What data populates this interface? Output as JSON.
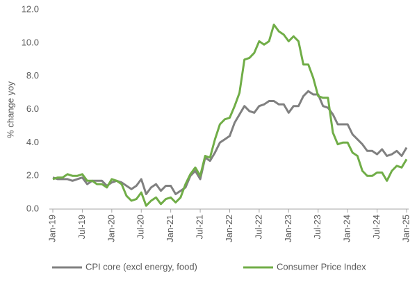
{
  "chart_data": {
    "type": "line",
    "y_label": "% change yoy",
    "categories": [
      "Jan-19",
      null,
      null,
      null,
      null,
      null,
      "Jul-19",
      null,
      null,
      null,
      null,
      null,
      "Jan-20",
      null,
      null,
      null,
      null,
      null,
      "Jul-20",
      null,
      null,
      null,
      null,
      null,
      "Jan-21",
      null,
      null,
      null,
      null,
      null,
      "Jul-21",
      null,
      null,
      null,
      null,
      null,
      "Jan-22",
      null,
      null,
      null,
      null,
      null,
      "Jul-22",
      null,
      null,
      null,
      null,
      null,
      "Jan-23",
      null,
      null,
      null,
      null,
      null,
      "Jul-23",
      null,
      null,
      null,
      null,
      null,
      "Jan-24",
      null,
      null,
      null,
      null,
      null,
      "Jul-24",
      null,
      null,
      null,
      null,
      null,
      "Jan-25"
    ],
    "series": [
      {
        "name": "CPI core (excl energy, food)",
        "color": "#808080",
        "values": [
          1.9,
          1.8,
          1.8,
          1.8,
          1.7,
          1.8,
          1.9,
          1.5,
          1.7,
          1.7,
          1.7,
          1.4,
          1.6,
          1.7,
          1.6,
          1.4,
          1.2,
          1.4,
          1.8,
          0.9,
          1.3,
          1.5,
          1.1,
          1.4,
          1.4,
          0.9,
          1.1,
          1.3,
          2.0,
          2.3,
          1.8,
          3.1,
          2.9,
          3.4,
          4.0,
          4.2,
          4.4,
          5.2,
          5.7,
          6.2,
          5.9,
          5.8,
          6.2,
          6.3,
          6.5,
          6.5,
          6.3,
          6.3,
          5.8,
          6.2,
          6.2,
          6.8,
          7.1,
          6.9,
          6.9,
          6.2,
          6.1,
          5.7,
          5.1,
          5.1,
          5.1,
          4.5,
          4.2,
          3.9,
          3.5,
          3.5,
          3.3,
          3.6,
          3.2,
          3.3,
          3.5,
          3.2,
          3.7
        ]
      },
      {
        "name": "Consumer Price Index",
        "color": "#70ad47",
        "values": [
          1.8,
          1.9,
          1.9,
          2.1,
          2.0,
          2.0,
          2.1,
          1.7,
          1.7,
          1.5,
          1.5,
          1.3,
          1.8,
          1.7,
          1.5,
          0.8,
          0.5,
          0.6,
          1.0,
          0.2,
          0.5,
          0.7,
          0.3,
          0.6,
          0.7,
          0.4,
          0.7,
          1.5,
          2.1,
          2.5,
          2.0,
          3.2,
          3.1,
          4.2,
          5.1,
          5.4,
          5.5,
          6.2,
          7.0,
          9.0,
          9.1,
          9.4,
          10.1,
          9.9,
          10.1,
          11.1,
          10.7,
          10.5,
          10.1,
          10.4,
          10.1,
          8.7,
          8.7,
          7.9,
          6.8,
          6.7,
          6.7,
          4.6,
          3.9,
          4.0,
          4.0,
          3.4,
          3.2,
          2.3,
          2.0,
          2.0,
          2.2,
          2.2,
          1.7,
          2.3,
          2.6,
          2.5,
          3.0
        ]
      }
    ],
    "ylim": [
      0,
      12
    ],
    "yticks": [
      {
        "value": 0,
        "label": "0.0"
      },
      {
        "value": 2,
        "label": "2.0"
      },
      {
        "value": 4,
        "label": "4.0"
      },
      {
        "value": 6,
        "label": "6.0"
      },
      {
        "value": 8,
        "label": "8.0"
      },
      {
        "value": 10,
        "label": "10.0"
      },
      {
        "value": 12,
        "label": "12.0"
      }
    ],
    "grid": false,
    "legend": "bottom"
  }
}
